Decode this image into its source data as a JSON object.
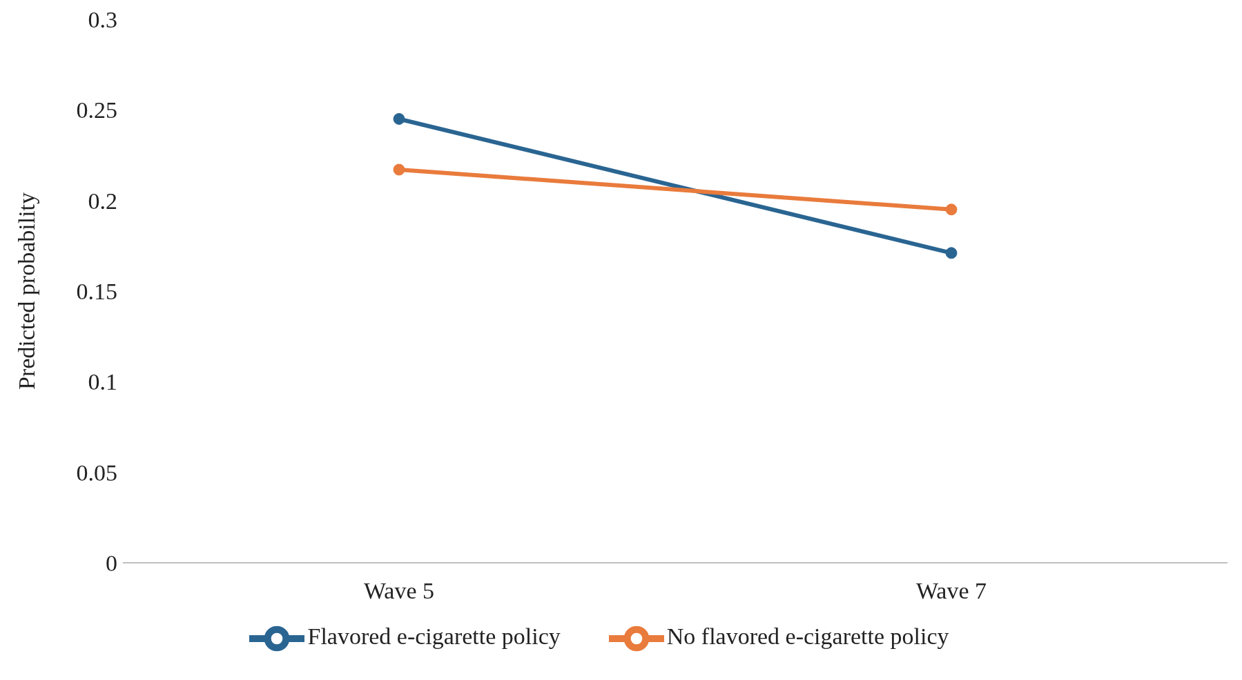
{
  "chart_data": {
    "type": "line",
    "ylabel": "Predicted probability",
    "categories": [
      "Wave 5",
      "Wave 7"
    ],
    "series": [
      {
        "name": "Flavored e-cigarette policy",
        "color": "#2a6592",
        "values": [
          0.245,
          0.171
        ]
      },
      {
        "name": "No flavored e-cigarette policy",
        "color": "#e97b3c",
        "values": [
          0.217,
          0.195
        ]
      }
    ],
    "ylim": [
      0,
      0.3
    ],
    "yticks": [
      0,
      0.05,
      0.1,
      0.15,
      0.2,
      0.25,
      0.3
    ],
    "grid": false,
    "legend": "bottom",
    "marker": "circle",
    "line_style": "solid"
  }
}
